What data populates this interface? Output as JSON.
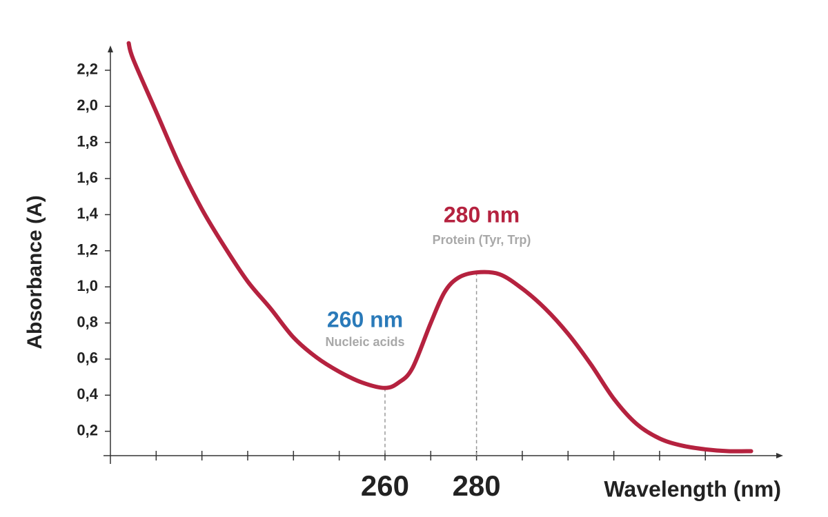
{
  "chart_data": {
    "type": "line",
    "x_label": "Wavelength (nm)",
    "y_label": "Absorbance (A)",
    "x": [
      204,
      205,
      210,
      215,
      220,
      225,
      230,
      235,
      240,
      245,
      250,
      255,
      260,
      263,
      266,
      270,
      273,
      276,
      280,
      285,
      290,
      295,
      300,
      305,
      310,
      315,
      320,
      325,
      330,
      335,
      340
    ],
    "values": [
      2.35,
      2.26,
      1.97,
      1.68,
      1.43,
      1.22,
      1.03,
      0.88,
      0.72,
      0.61,
      0.53,
      0.47,
      0.44,
      0.47,
      0.55,
      0.8,
      0.97,
      1.05,
      1.08,
      1.07,
      0.99,
      0.88,
      0.74,
      0.57,
      0.38,
      0.24,
      0.16,
      0.12,
      0.1,
      0.09,
      0.09
    ],
    "color": "#b5223f",
    "xlim": [
      200,
      347
    ],
    "ylim": [
      0.065,
      2.36
    ],
    "xticks": [
      260,
      280
    ],
    "x_minor_ticks": [
      210,
      220,
      230,
      240,
      250,
      260,
      270,
      280,
      290,
      300,
      310,
      320,
      330
    ],
    "yticks": [
      {
        "value": 0.2,
        "label": "0,2"
      },
      {
        "value": 0.4,
        "label": "0,4"
      },
      {
        "value": 0.6,
        "label": "0,6"
      },
      {
        "value": 0.8,
        "label": "0,8"
      },
      {
        "value": 1.0,
        "label": "1,0"
      },
      {
        "value": 1.2,
        "label": "1,2"
      },
      {
        "value": 1.4,
        "label": "1,4"
      },
      {
        "value": 1.6,
        "label": "1,6"
      },
      {
        "value": 1.8,
        "label": "1,8"
      },
      {
        "value": 2.0,
        "label": "2,0"
      },
      {
        "value": 2.2,
        "label": "2,2"
      }
    ],
    "annotations": [
      {
        "label": "260 nm",
        "sublabel": "Nucleic acids",
        "x": 260,
        "y": 0.44,
        "color": "#2a7ab9"
      },
      {
        "label": "280 nm",
        "sublabel": "Protein (Tyr, Trp)",
        "x": 280,
        "y": 1.08,
        "color": "#b5223f"
      }
    ]
  }
}
